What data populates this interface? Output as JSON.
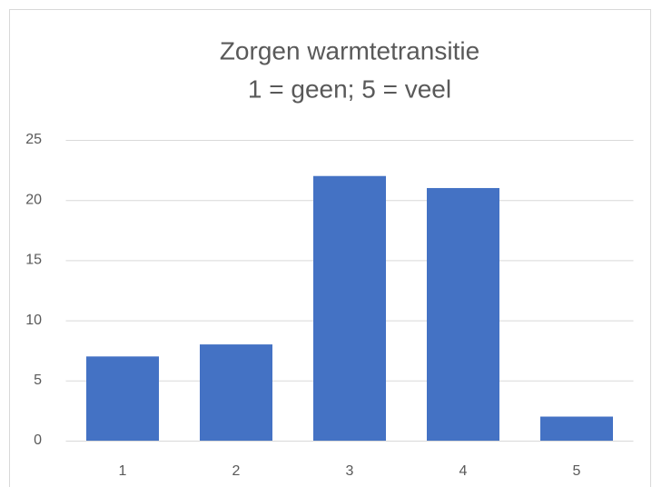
{
  "chart_data": {
    "type": "bar",
    "title": "Zorgen warmtetransitie",
    "subtitle": "1 = geen; 5 = veel",
    "categories": [
      "1",
      "2",
      "3",
      "4",
      "5"
    ],
    "values": [
      7,
      8,
      22,
      21,
      2
    ],
    "color": "#4472c4",
    "ylim": [
      0,
      25
    ],
    "yticks": [
      0,
      5,
      10,
      15,
      20,
      25
    ],
    "grid": true
  }
}
